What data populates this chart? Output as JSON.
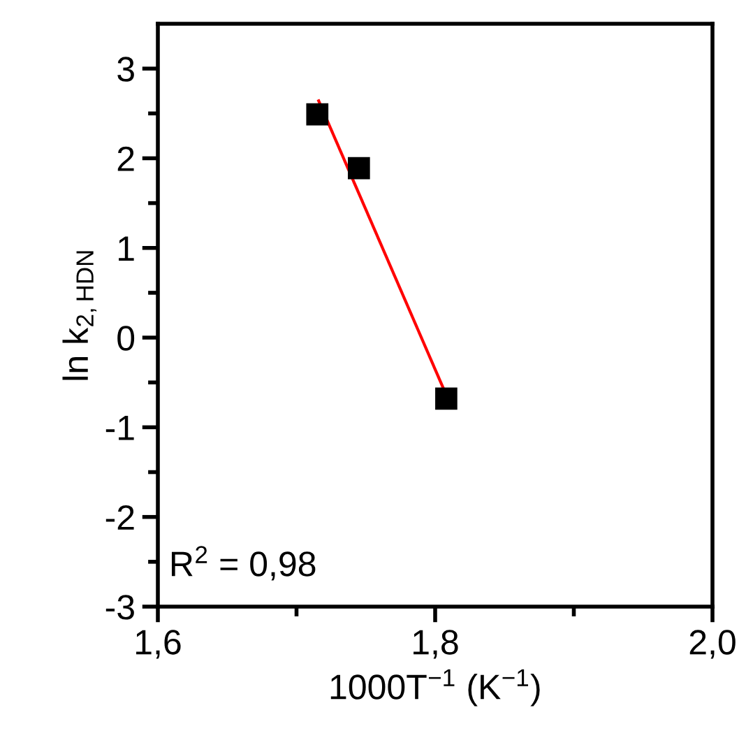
{
  "chart_data": {
    "type": "scatter",
    "xlabel": "1000T$^{−1}$ (K$^{−1}$)",
    "ylabel": "ln k$_{2,HDN}$",
    "annotations": [
      "R$^{2}$ = 0,98"
    ],
    "series": [
      {
        "color": "#000000",
        "marker": "square",
        "x": [
          1.715,
          1.745,
          1.808
        ],
        "values": [
          2.49,
          1.89,
          -0.68
        ]
      },
      {
        "type": "line",
        "color": "#ff0000",
        "marker": "none",
        "x": [
          1.716,
          1.808
        ],
        "values": [
          2.64,
          -0.64
        ]
      }
    ],
    "xlim": [
      1.6,
      2.0
    ],
    "ylim": [
      -3,
      3.5
    ],
    "xticks": [
      {
        "value": 1.6,
        "label": "1,6"
      },
      {
        "value": 1.7,
        "label": null
      },
      {
        "value": 1.8,
        "label": "1,8"
      },
      {
        "value": 1.9,
        "label": null
      },
      {
        "value": 2.0,
        "label": "2,0"
      }
    ],
    "yticks": [
      {
        "value": -3,
        "label": "-3"
      },
      {
        "value": -2.5,
        "label": null
      },
      {
        "value": -2,
        "label": "-2"
      },
      {
        "value": -1.5,
        "label": null
      },
      {
        "value": -1,
        "label": "-1"
      },
      {
        "value": -0.5,
        "label": null
      },
      0,
      {
        "value": 0.5,
        "label": null
      },
      1,
      {
        "value": 1.5,
        "label": null
      },
      2,
      {
        "value": 2.5,
        "label": null
      },
      3
    ],
    "grid": false,
    "legend": false
  }
}
